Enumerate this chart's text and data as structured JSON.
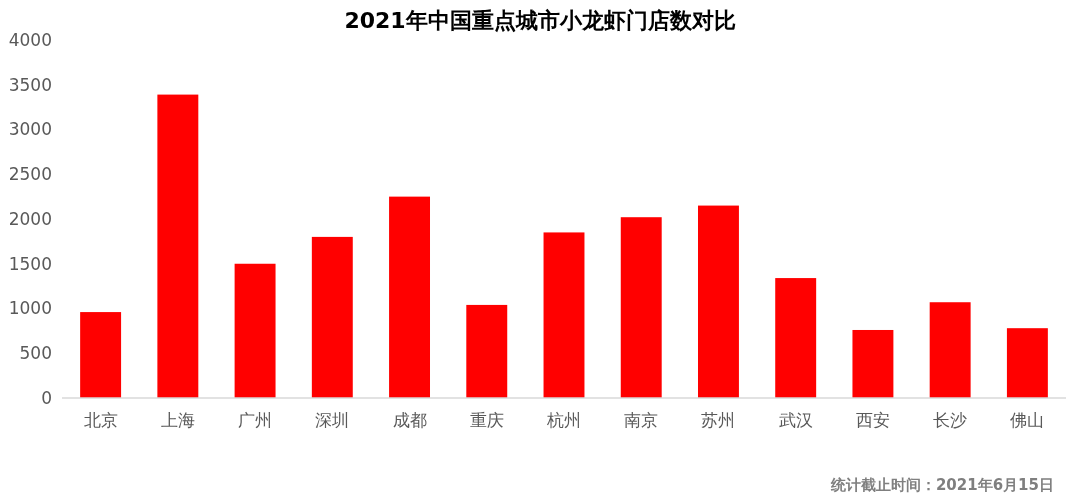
{
  "chart_data": {
    "type": "bar",
    "title": "2021年中国重点城市小龙虾门店数对比",
    "categories": [
      "北京",
      "上海",
      "广州",
      "深圳",
      "成都",
      "重庆",
      "杭州",
      "南京",
      "苏州",
      "武汉",
      "西安",
      "长沙",
      "佛山"
    ],
    "values": [
      960,
      3390,
      1500,
      1800,
      2250,
      1040,
      1850,
      2020,
      2150,
      1340,
      760,
      1070,
      780
    ],
    "color": "#ff0000",
    "ylim": [
      0,
      4000
    ],
    "yticks": [
      0,
      500,
      1000,
      1500,
      2000,
      2500,
      3000,
      3500,
      4000
    ],
    "grid": false,
    "annotations": [
      "统计截止时间：2021年6月15日"
    ]
  }
}
